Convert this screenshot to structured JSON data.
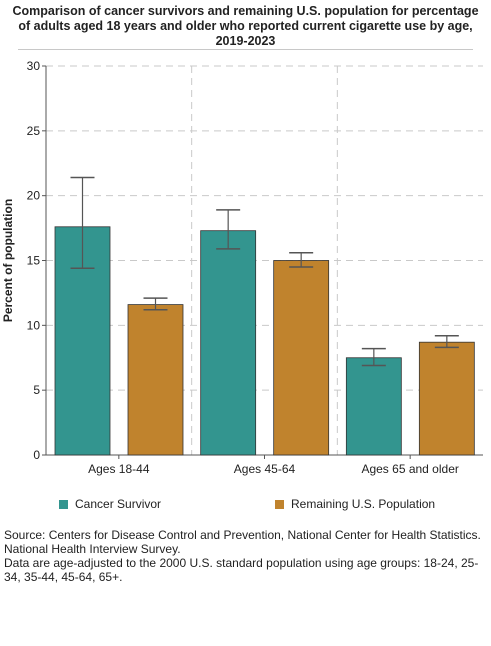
{
  "chart_data": {
    "type": "bar",
    "title": "Comparison of cancer survivors and remaining U.S. population for percentage of adults aged 18 years and older who reported current cigarette use by age,  2019-2023",
    "ylabel": "Percent of population",
    "xlabel": "",
    "ylim": [
      0,
      30
    ],
    "yticks": [
      "0",
      "5",
      "10",
      "15",
      "20",
      "25",
      "30"
    ],
    "grid": true,
    "legend_position": "bottom",
    "categories": [
      "Ages 18-44",
      "Ages 45-64",
      "Ages 65 and older"
    ],
    "series": [
      {
        "name": "Cancer Survivor",
        "color": "#33958f",
        "values": [
          17.6,
          17.3,
          7.5
        ],
        "error_low": [
          14.4,
          15.9,
          6.9
        ],
        "error_high": [
          21.4,
          18.9,
          8.2
        ]
      },
      {
        "name": "Remaining U.S. Population",
        "color": "#c0832d",
        "values": [
          11.6,
          15.0,
          8.7
        ],
        "error_low": [
          11.2,
          14.5,
          8.3
        ],
        "error_high": [
          12.1,
          15.6,
          9.2
        ]
      }
    ]
  },
  "source": {
    "line1": "Source: Centers for Disease Control and Prevention, National Center for Health Statistics. National Health Interview Survey.",
    "line2": "Data are age-adjusted to the 2000 U.S. standard population using age groups: 18-24, 25-34, 35-44, 45-64, 65+."
  }
}
